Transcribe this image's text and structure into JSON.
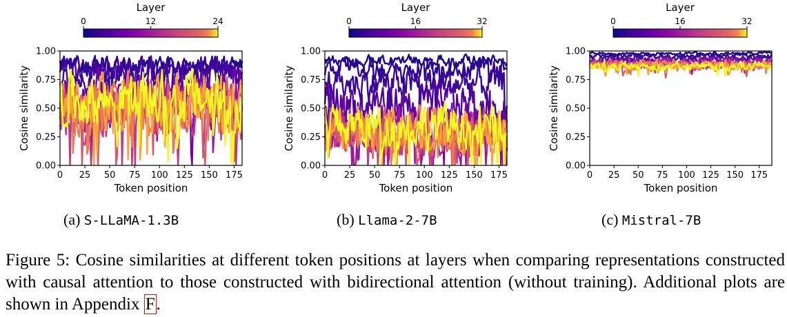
{
  "figure": {
    "caption": {
      "label": "Figure 5:",
      "text": "Cosine similarities at different token positions at layers when comparing representations constructed with causal attention to those constructed with bidirectional attention (without training). Additional plots are shown in Appendix",
      "appendix_ref": "F",
      "end": "."
    }
  },
  "chart_data": [
    {
      "type": "line",
      "subcaption_label": "(a)",
      "model": "S-LLaMA-1.3B",
      "xlabel": "Token position",
      "ylabel": "Cosine similarity",
      "xlim": [
        0,
        183
      ],
      "ylim": [
        0.0,
        1.0
      ],
      "x_ticks": [
        "0",
        "25",
        "50",
        "75",
        "100",
        "125",
        "150",
        "175"
      ],
      "y_ticks": [
        "0.00",
        "0.25",
        "0.50",
        "0.75",
        "1.00"
      ],
      "colorbar": {
        "label": "Layer",
        "ticks": [
          "0",
          "12",
          "24"
        ],
        "max": 24,
        "colormap": "plasma"
      },
      "num_points": 183,
      "series": [
        {
          "layer": 1,
          "values_summary": {
            "mean": 0.88,
            "spread": 0.07
          }
        },
        {
          "layer": 2,
          "values_summary": {
            "mean": 0.82,
            "spread": 0.1
          }
        },
        {
          "layer": 3,
          "values_summary": {
            "mean": 0.8,
            "spread": 0.12
          }
        },
        {
          "layer": 6,
          "values_summary": {
            "mean": 0.62,
            "spread": 0.16
          }
        },
        {
          "layer": 9,
          "values_summary": {
            "mean": 0.54,
            "spread": 0.18
          }
        },
        {
          "layer": 12,
          "values_summary": {
            "mean": 0.5,
            "spread": 0.2
          }
        },
        {
          "layer": 15,
          "values_summary": {
            "mean": 0.5,
            "spread": 0.2
          }
        },
        {
          "layer": 18,
          "values_summary": {
            "mean": 0.52,
            "spread": 0.2
          }
        },
        {
          "layer": 21,
          "values_summary": {
            "mean": 0.56,
            "spread": 0.2
          }
        },
        {
          "layer": 24,
          "values_summary": {
            "mean": 0.58,
            "spread": 0.2
          }
        }
      ]
    },
    {
      "type": "line",
      "subcaption_label": "(b)",
      "model": "Llama-2-7B",
      "xlabel": "Token position",
      "ylabel": "Cosine similarity",
      "xlim": [
        0,
        183
      ],
      "ylim": [
        0.0,
        1.0
      ],
      "x_ticks": [
        "0",
        "25",
        "50",
        "75",
        "100",
        "125",
        "150",
        "175"
      ],
      "y_ticks": [
        "0.00",
        "0.25",
        "0.50",
        "0.75",
        "1.00"
      ],
      "colorbar": {
        "label": "Layer",
        "ticks": [
          "0",
          "16",
          "32"
        ],
        "max": 32,
        "colormap": "plasma"
      },
      "num_points": 183,
      "series": [
        {
          "layer": 1,
          "values_summary": {
            "mean": 0.92,
            "spread": 0.04
          }
        },
        {
          "layer": 2,
          "values_summary": {
            "mean": 0.85,
            "spread": 0.07
          }
        },
        {
          "layer": 3,
          "values_summary": {
            "mean": 0.72,
            "spread": 0.12
          }
        },
        {
          "layer": 5,
          "values_summary": {
            "mean": 0.55,
            "spread": 0.15
          }
        },
        {
          "layer": 8,
          "values_summary": {
            "mean": 0.4,
            "spread": 0.15
          }
        },
        {
          "layer": 12,
          "values_summary": {
            "mean": 0.3,
            "spread": 0.15
          }
        },
        {
          "layer": 16,
          "values_summary": {
            "mean": 0.28,
            "spread": 0.15
          }
        },
        {
          "layer": 20,
          "values_summary": {
            "mean": 0.3,
            "spread": 0.15
          }
        },
        {
          "layer": 24,
          "values_summary": {
            "mean": 0.3,
            "spread": 0.16
          }
        },
        {
          "layer": 28,
          "values_summary": {
            "mean": 0.32,
            "spread": 0.16
          }
        },
        {
          "layer": 32,
          "values_summary": {
            "mean": 0.35,
            "spread": 0.16
          }
        }
      ]
    },
    {
      "type": "line",
      "subcaption_label": "(c)",
      "model": "Mistral-7B",
      "xlabel": "Token position",
      "ylabel": "Cosine similarity",
      "xlim": [
        0,
        188
      ],
      "ylim": [
        0.0,
        1.0
      ],
      "x_ticks": [
        "0",
        "25",
        "50",
        "75",
        "100",
        "125",
        "150",
        "175"
      ],
      "y_ticks": [
        "0.00",
        "0.25",
        "0.50",
        "0.75",
        "1.00"
      ],
      "colorbar": {
        "label": "Layer",
        "ticks": [
          "0",
          "16",
          "32"
        ],
        "max": 32,
        "colormap": "plasma"
      },
      "num_points": 188,
      "series": [
        {
          "layer": 1,
          "values_summary": {
            "mean": 0.98,
            "spread": 0.01
          }
        },
        {
          "layer": 2,
          "values_summary": {
            "mean": 0.96,
            "spread": 0.015
          }
        },
        {
          "layer": 4,
          "values_summary": {
            "mean": 0.94,
            "spread": 0.02
          }
        },
        {
          "layer": 8,
          "values_summary": {
            "mean": 0.92,
            "spread": 0.025
          }
        },
        {
          "layer": 12,
          "values_summary": {
            "mean": 0.9,
            "spread": 0.03
          }
        },
        {
          "layer": 16,
          "values_summary": {
            "mean": 0.89,
            "spread": 0.03
          }
        },
        {
          "layer": 20,
          "values_summary": {
            "mean": 0.88,
            "spread": 0.03
          }
        },
        {
          "layer": 24,
          "values_summary": {
            "mean": 0.88,
            "spread": 0.03
          }
        },
        {
          "layer": 28,
          "values_summary": {
            "mean": 0.87,
            "spread": 0.03
          }
        },
        {
          "layer": 32,
          "values_summary": {
            "mean": 0.87,
            "spread": 0.03
          }
        }
      ]
    }
  ]
}
